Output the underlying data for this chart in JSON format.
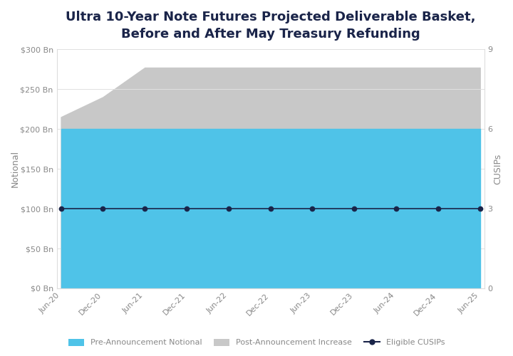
{
  "title": "Ultra 10-Year Note Futures Projected Deliverable Basket,\nBefore and After May Treasury Refunding",
  "title_color": "#1a2449",
  "title_fontsize": 13,
  "background_color": "#ffffff",
  "plot_bg_color": "#ffffff",
  "ylabel_left": "Notional",
  "ylabel_right": "CUSIPs",
  "ylim_left": [
    0,
    300
  ],
  "ylim_right": [
    0,
    9
  ],
  "yticks_left": [
    0,
    50,
    100,
    150,
    200,
    250,
    300
  ],
  "ytick_labels_left": [
    "$0 Bn",
    "$50 Bn",
    "$100 Bn",
    "$150 Bn",
    "$200 Bn",
    "$250 Bn",
    "$300 Bn"
  ],
  "yticks_right": [
    0,
    3,
    6,
    9
  ],
  "x_labels": [
    "Jun-20",
    "Dec-20",
    "Jun-21",
    "Dec-21",
    "Jun-22",
    "Dec-22",
    "Jun-23",
    "Dec-23",
    "Jun-24",
    "Dec-24",
    "Jun-25"
  ],
  "x_positions": [
    0,
    1,
    2,
    3,
    4,
    5,
    6,
    7,
    8,
    9,
    10
  ],
  "pre_announcement_notional": [
    200,
    200,
    200,
    200,
    200,
    200,
    200,
    200,
    200,
    200,
    200
  ],
  "post_announcement_top": [
    215,
    240,
    277,
    277,
    277,
    277,
    277,
    277,
    277,
    277,
    277
  ],
  "eligible_cusips": [
    3,
    3,
    3,
    3,
    3,
    3,
    3,
    3,
    3,
    3,
    3
  ],
  "pre_color": "#4fc3e8",
  "post_color": "#c8c8c8",
  "cusip_color": "#1a2449",
  "legend_labels": [
    "Pre-Announcement Notional",
    "Post-Announcement Increase",
    "Eligible CUSIPs"
  ],
  "font_color": "#888888",
  "tick_color": "#aaaaaa",
  "grid_color": "#e0e0e0",
  "spine_color": "#dddddd"
}
